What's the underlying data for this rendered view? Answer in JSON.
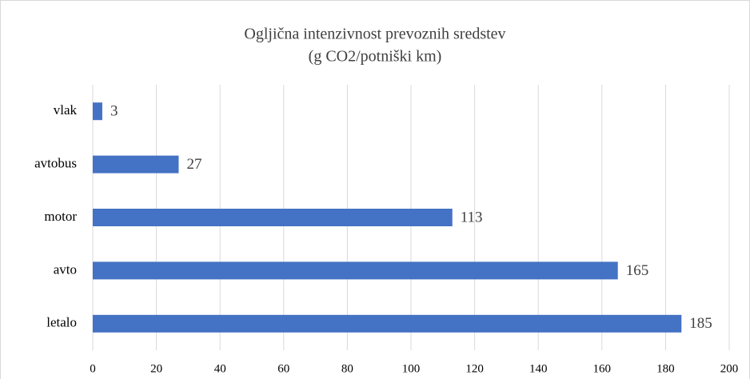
{
  "chart_data": {
    "type": "bar",
    "orientation": "horizontal",
    "title": "Ogljična intenzivnost prevoznih sredstev",
    "subtitle": "(g CO2/potniški km)",
    "categories": [
      "vlak",
      "avtobus",
      "motor",
      "avto",
      "letalo"
    ],
    "values": [
      3,
      27,
      113,
      165,
      185
    ],
    "color": "#4472c4",
    "xlim": [
      0,
      200
    ],
    "xticks": [
      0,
      20,
      40,
      60,
      80,
      100,
      120,
      140,
      160,
      180,
      200
    ],
    "grid": true
  }
}
